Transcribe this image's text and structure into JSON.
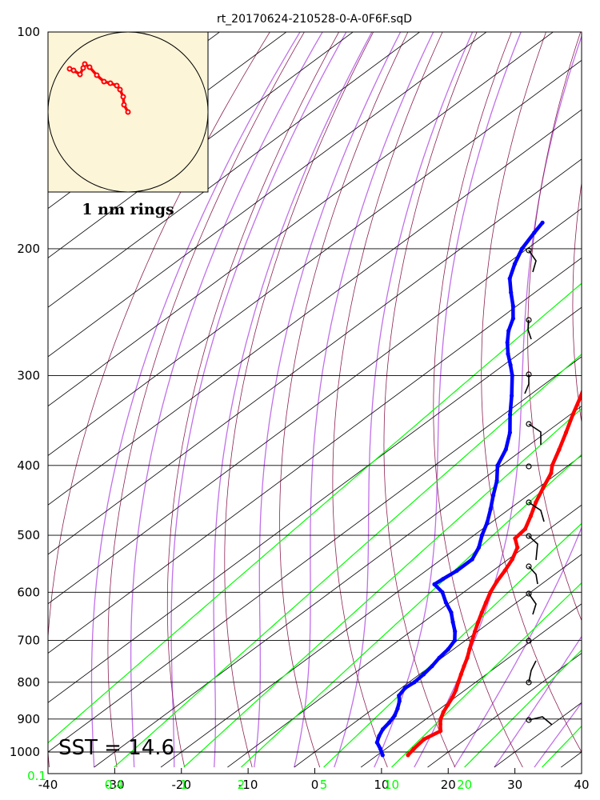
{
  "chart_data": {
    "type": "skew-t",
    "title": "rt_20170624-210528-0-A-0F6F.sqD",
    "annotation": "SST = 14.6",
    "hodograph_label": "1 nm rings",
    "pressure_ticks": [
      100,
      200,
      300,
      400,
      500,
      600,
      700,
      800,
      900,
      1000
    ],
    "temperature_ticks": [
      -40,
      -30,
      -20,
      -10,
      0,
      10,
      20,
      30,
      40
    ],
    "mixing_ratio_labels": [
      "0.1",
      "0.4",
      "1",
      "2",
      "5",
      "10",
      "20"
    ],
    "mixing_ratio_values": [
      0.1,
      0.4,
      1,
      2,
      5,
      10,
      20
    ],
    "xlim": [
      -40,
      40
    ],
    "ylim": [
      1050,
      100
    ],
    "y_scale": "log",
    "colors": {
      "temperature": "#ff0000",
      "dewpoint": "#0000ff",
      "isotherms": "#000000",
      "dry_adiabats": "#8b2252",
      "moist_adiabats": "#c070e8",
      "mixing_ratio": "#00ff00",
      "hodograph_bg": "#fdf5d8",
      "hodograph_trace": "#ff0000"
    },
    "temperature_profile": [
      {
        "p": 1010,
        "t": 14.6
      },
      {
        "p": 990,
        "t": 14.2
      },
      {
        "p": 960,
        "t": 13.8
      },
      {
        "p": 935,
        "t": 14.6
      },
      {
        "p": 915,
        "t": 13.2
      },
      {
        "p": 900,
        "t": 12.2
      },
      {
        "p": 880,
        "t": 11.2
      },
      {
        "p": 860,
        "t": 10.4
      },
      {
        "p": 840,
        "t": 9.6
      },
      {
        "p": 820,
        "t": 8.6
      },
      {
        "p": 800,
        "t": 7.4
      },
      {
        "p": 780,
        "t": 6.2
      },
      {
        "p": 760,
        "t": 5.0
      },
      {
        "p": 740,
        "t": 3.8
      },
      {
        "p": 720,
        "t": 2.4
      },
      {
        "p": 700,
        "t": 1.0
      },
      {
        "p": 680,
        "t": -0.4
      },
      {
        "p": 660,
        "t": -1.8
      },
      {
        "p": 640,
        "t": -3.2
      },
      {
        "p": 620,
        "t": -4.6
      },
      {
        "p": 600,
        "t": -6.0
      },
      {
        "p": 580,
        "t": -7.2
      },
      {
        "p": 560,
        "t": -8.2
      },
      {
        "p": 540,
        "t": -9.4
      },
      {
        "p": 520,
        "t": -11.0
      },
      {
        "p": 505,
        "t": -13.2
      },
      {
        "p": 490,
        "t": -13.6
      },
      {
        "p": 470,
        "t": -15.4
      },
      {
        "p": 450,
        "t": -17.4
      },
      {
        "p": 430,
        "t": -19.2
      },
      {
        "p": 410,
        "t": -21.0
      },
      {
        "p": 400,
        "t": -22.4
      },
      {
        "p": 380,
        "t": -24.6
      },
      {
        "p": 360,
        "t": -27.0
      },
      {
        "p": 340,
        "t": -29.6
      },
      {
        "p": 320,
        "t": -32.2
      },
      {
        "p": 300,
        "t": -35.2
      },
      {
        "p": 290,
        "t": -36.8
      },
      {
        "p": 280,
        "t": -38.2
      },
      {
        "p": 270,
        "t": -39.8
      },
      {
        "p": 260,
        "t": -41.6
      },
      {
        "p": 250,
        "t": -43.6
      },
      {
        "p": 240,
        "t": -45.4
      },
      {
        "p": 230,
        "t": -47.4
      },
      {
        "p": 220,
        "t": -49.6
      },
      {
        "p": 210,
        "t": -51.8
      },
      {
        "p": 200,
        "t": -54.0
      },
      {
        "p": 190,
        "t": -56.4
      },
      {
        "p": 180,
        "t": -58.6
      },
      {
        "p": 177,
        "t": -59.2
      }
    ],
    "dewpoint_profile": [
      {
        "p": 1010,
        "t": 10.8
      },
      {
        "p": 990,
        "t": 9.2
      },
      {
        "p": 970,
        "t": 7.4
      },
      {
        "p": 950,
        "t": 6.4
      },
      {
        "p": 930,
        "t": 5.6
      },
      {
        "p": 910,
        "t": 5.2
      },
      {
        "p": 890,
        "t": 4.6
      },
      {
        "p": 870,
        "t": 3.6
      },
      {
        "p": 850,
        "t": 2.4
      },
      {
        "p": 835,
        "t": 1.2
      },
      {
        "p": 815,
        "t": 0.6
      },
      {
        "p": 800,
        "t": 0.8
      },
      {
        "p": 780,
        "t": 0.6
      },
      {
        "p": 760,
        "t": 0.2
      },
      {
        "p": 740,
        "t": -0.4
      },
      {
        "p": 720,
        "t": -0.8
      },
      {
        "p": 700,
        "t": -1.6
      },
      {
        "p": 680,
        "t": -3.4
      },
      {
        "p": 660,
        "t": -5.6
      },
      {
        "p": 640,
        "t": -7.8
      },
      {
        "p": 620,
        "t": -10.6
      },
      {
        "p": 600,
        "t": -13.2
      },
      {
        "p": 585,
        "t": -16.0
      },
      {
        "p": 575,
        "t": -15.8
      },
      {
        "p": 560,
        "t": -15.4
      },
      {
        "p": 540,
        "t": -15.4
      },
      {
        "p": 520,
        "t": -16.8
      },
      {
        "p": 500,
        "t": -18.8
      },
      {
        "p": 480,
        "t": -20.6
      },
      {
        "p": 460,
        "t": -22.8
      },
      {
        "p": 440,
        "t": -25.2
      },
      {
        "p": 420,
        "t": -27.6
      },
      {
        "p": 400,
        "t": -30.6
      },
      {
        "p": 380,
        "t": -32.6
      },
      {
        "p": 360,
        "t": -35.4
      },
      {
        "p": 340,
        "t": -39.0
      },
      {
        "p": 320,
        "t": -42.6
      },
      {
        "p": 300,
        "t": -46.6
      },
      {
        "p": 290,
        "t": -49.0
      },
      {
        "p": 280,
        "t": -51.6
      },
      {
        "p": 270,
        "t": -54.0
      },
      {
        "p": 260,
        "t": -56.2
      },
      {
        "p": 250,
        "t": -58.0
      },
      {
        "p": 240,
        "t": -60.6
      },
      {
        "p": 230,
        "t": -63.6
      },
      {
        "p": 220,
        "t": -66.6
      },
      {
        "p": 210,
        "t": -68.8
      },
      {
        "p": 200,
        "t": -70.8
      },
      {
        "p": 190,
        "t": -72.2
      },
      {
        "p": 184,
        "t": -73.0
      }
    ],
    "dewpoint_upper_segment": [
      {
        "p": 181,
        "t": -65.2
      },
      {
        "p": 179,
        "t": -63.0
      },
      {
        "p": 177,
        "t": -60.6
      }
    ]
  }
}
